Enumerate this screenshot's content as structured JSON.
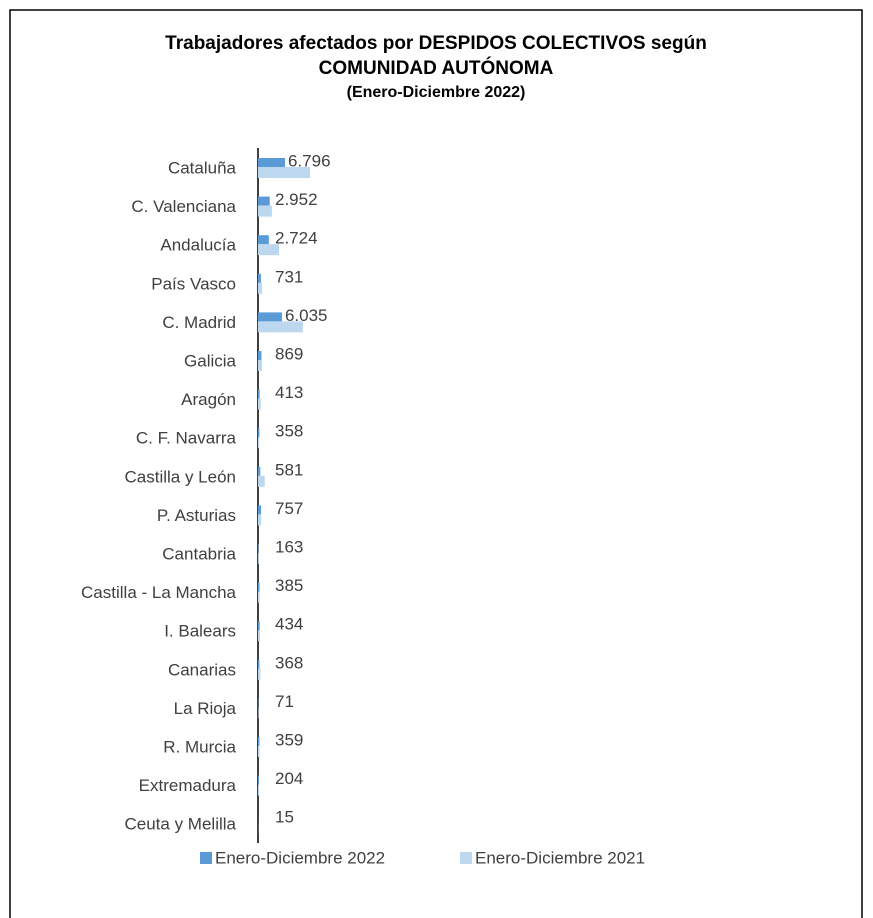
{
  "chart_data": {
    "type": "barh",
    "title": "Trabajadores afectados por DESPIDOS COLECTIVOS según",
    "title_line2": "COMUNIDAD AUTÓNOMA",
    "subtitle": "(Enero-Diciembre 2022)",
    "categories": [
      "Cataluña",
      "C. Valenciana",
      "Andalucía",
      "País Vasco",
      "C. Madrid",
      "Galicia",
      "Aragón",
      "C. F. Navarra",
      "Castilla y León",
      "P. Asturias",
      "Cantabria",
      "Castilla - La Mancha",
      "I. Balears",
      "Canarias",
      "La Rioja",
      "R. Murcia",
      "Extremadura",
      "Ceuta y Melilla"
    ],
    "series": [
      {
        "name": "Enero-Diciembre 2022",
        "color": "#5b9bd5",
        "values": [
          6796,
          2952,
          2724,
          731,
          6035,
          869,
          413,
          358,
          581,
          757,
          163,
          385,
          434,
          368,
          71,
          359,
          204,
          15
        ],
        "value_labels": [
          "6.796",
          "2.952",
          "2.724",
          "731",
          "6.035",
          "869",
          "413",
          "358",
          "581",
          "757",
          "163",
          "385",
          "434",
          "368",
          "71",
          "359",
          "204",
          "15"
        ]
      },
      {
        "name": "Enero-Diciembre 2021",
        "color": "#bdd7ee",
        "values": [
          13100,
          3500,
          5300,
          1000,
          11300,
          1000,
          700,
          300,
          1700,
          800,
          200,
          400,
          500,
          600,
          100,
          400,
          300,
          30
        ]
      }
    ],
    "xlim": [
      0,
      150000
    ]
  }
}
